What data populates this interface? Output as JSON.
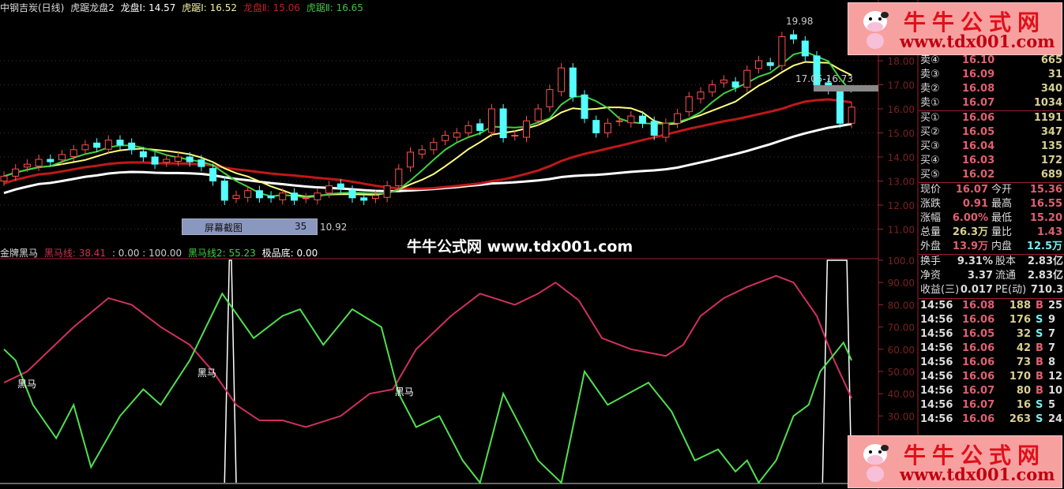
{
  "header": {
    "title": "中钢吉炭(日线)",
    "indicator": "虎踞龙盘2",
    "items": [
      {
        "label": "龙盘Ⅰ: 14.57",
        "color": "#ffffff"
      },
      {
        "label": "虎踞Ⅰ: 16.52",
        "color": "#f0f0a0"
      },
      {
        "label": "龙盘Ⅱ: 15.06",
        "color": "#c02020"
      },
      {
        "label": "虎踞Ⅱ: 16.65",
        "color": "#40c040"
      }
    ]
  },
  "price_axis": [
    "18.00",
    "17.00",
    "16.00",
    "15.00",
    "14.00",
    "13.00",
    "12.00",
    "11.00"
  ],
  "price_annotations": {
    "high": "19.98",
    "range": "17.05-16.73",
    "low": "10.92"
  },
  "candles_close": [
    13.2,
    13.5,
    13.7,
    13.9,
    13.8,
    14.1,
    14.3,
    14.5,
    14.4,
    14.7,
    14.5,
    14.3,
    14.0,
    13.7,
    13.9,
    14.0,
    13.8,
    13.6,
    13.0,
    12.2,
    12.4,
    12.6,
    12.3,
    12.3,
    12.5,
    12.2,
    12.3,
    12.5,
    12.8,
    12.7,
    12.3,
    12.2,
    12.4,
    12.8,
    13.5,
    14.2,
    14.3,
    14.6,
    14.9,
    15.0,
    15.3,
    15.1,
    16.0,
    14.8,
    14.9,
    15.5,
    16.0,
    16.8,
    17.7,
    16.5,
    15.6,
    15.0,
    15.4,
    15.5,
    15.7,
    15.4,
    14.9,
    15.4,
    15.8,
    16.5,
    16.7,
    17.0,
    17.2,
    16.9,
    17.6,
    18.0,
    17.8,
    19.0,
    18.9,
    18.2,
    17.0,
    16.8,
    15.4,
    16.07
  ],
  "colors": {
    "up": "#ff5050",
    "down": "#54ffff",
    "ma1": "#ffffff",
    "ma2": "#ffff80",
    "ma3": "#c01818",
    "ma4": "#40d040"
  },
  "screenshot_tip": {
    "label": "屏幕截图",
    "value": "35"
  },
  "watermark_center": "牛牛公式网 www.tdx001.com",
  "watermark": {
    "name": "牛牛公式网",
    "url": "www.tdx001.com"
  },
  "indicator": {
    "name": "金牌黑马",
    "items": [
      {
        "label": "黑马线: 38.41",
        "color": "#d03050"
      },
      {
        "label": ": 0.00 : 100.00",
        "color": "#cccccc"
      },
      {
        "label": "黑马线2: 55.23",
        "color": "#40d040"
      },
      {
        "label": "极品底: 0.00",
        "color": "#ffffff"
      }
    ],
    "axis": [
      "100.0",
      "90.00",
      "80.00",
      "70.00",
      "60.00",
      "50.00",
      "40.00",
      "30.00"
    ],
    "signal_label": "黑马",
    "signal_bars": [
      1.5,
      17,
      34
    ],
    "spikes": [
      [
        19,
        20
      ],
      [
        70.5,
        73
      ]
    ],
    "red": [
      [
        0,
        45
      ],
      [
        2,
        50
      ],
      [
        6,
        70
      ],
      [
        9,
        83
      ],
      [
        11,
        80
      ],
      [
        13.5,
        70
      ],
      [
        16,
        62
      ],
      [
        18,
        50
      ],
      [
        20,
        35
      ],
      [
        22,
        28
      ],
      [
        24,
        28
      ],
      [
        26,
        25
      ],
      [
        29,
        30
      ],
      [
        31.5,
        40
      ],
      [
        33.5,
        42
      ],
      [
        35.5,
        60
      ],
      [
        38.5,
        75
      ],
      [
        41,
        85
      ],
      [
        44,
        80
      ],
      [
        46,
        85
      ],
      [
        47.5,
        90
      ],
      [
        49.5,
        82
      ],
      [
        51.5,
        65
      ],
      [
        54,
        60
      ],
      [
        57,
        57
      ],
      [
        58.5,
        62
      ],
      [
        60,
        75
      ],
      [
        62,
        83
      ],
      [
        64,
        88
      ],
      [
        66.5,
        93
      ],
      [
        68,
        90
      ],
      [
        70,
        75
      ],
      [
        71.5,
        55
      ],
      [
        73,
        38
      ]
    ],
    "green": [
      [
        0,
        60
      ],
      [
        1,
        55
      ],
      [
        2.5,
        35
      ],
      [
        4.5,
        20
      ],
      [
        6,
        35
      ],
      [
        7.5,
        7
      ],
      [
        10,
        30
      ],
      [
        12,
        42
      ],
      [
        13.5,
        35
      ],
      [
        16,
        55
      ],
      [
        18.8,
        85
      ],
      [
        21.5,
        65
      ],
      [
        24,
        75
      ],
      [
        25.5,
        78
      ],
      [
        27.5,
        62
      ],
      [
        30,
        78
      ],
      [
        32.5,
        70
      ],
      [
        34,
        40
      ],
      [
        35.5,
        25
      ],
      [
        37.5,
        30
      ],
      [
        39.5,
        10
      ],
      [
        41,
        0
      ],
      [
        43,
        40
      ],
      [
        46,
        10
      ],
      [
        48,
        0
      ],
      [
        50,
        50
      ],
      [
        52,
        35
      ],
      [
        55.5,
        45
      ],
      [
        57.5,
        32
      ],
      [
        59.5,
        10
      ],
      [
        61.5,
        15
      ],
      [
        63,
        5
      ],
      [
        64,
        10
      ],
      [
        65,
        0
      ],
      [
        66.5,
        10
      ],
      [
        68,
        30
      ],
      [
        69.3,
        35
      ],
      [
        70.3,
        50
      ],
      [
        72.3,
        63
      ],
      [
        73,
        55
      ]
    ]
  },
  "quote": {
    "asks": [
      {
        "label": "卖④",
        "price": "16.10",
        "vol": "665"
      },
      {
        "label": "卖③",
        "price": "16.09",
        "vol": "31"
      },
      {
        "label": "卖②",
        "price": "16.08",
        "vol": "340"
      },
      {
        "label": "卖①",
        "price": "16.07",
        "vol": "1034"
      }
    ],
    "bids": [
      {
        "label": "买①",
        "price": "16.06",
        "vol": "1191"
      },
      {
        "label": "买②",
        "price": "16.05",
        "vol": "347"
      },
      {
        "label": "买③",
        "price": "16.04",
        "vol": "135"
      },
      {
        "label": "买④",
        "price": "16.03",
        "vol": "172"
      },
      {
        "label": "买⑤",
        "price": "16.02",
        "vol": "689"
      }
    ],
    "stats": [
      {
        "l1": "现价",
        "v1": "16.07",
        "l2": "今开",
        "v2": "15.36"
      },
      {
        "l1": "涨跌",
        "v1": "0.91",
        "l2": "最高",
        "v2": "16.55"
      },
      {
        "l1": "涨幅",
        "v1": "6.00%",
        "l2": "最低",
        "v2": "15.20"
      },
      {
        "l1": "总量",
        "v1": "26.3万",
        "l2": "量比",
        "v2": "1.43"
      },
      {
        "l1": "外盘",
        "v1": "13.9万",
        "l2": "内盘",
        "v2": "12.5万"
      }
    ],
    "fin": [
      {
        "l1": "换手",
        "v1": "9.31%",
        "l2": "股本",
        "v2": "2.83亿"
      },
      {
        "l1": "净资",
        "v1": "3.37",
        "l2": "流通",
        "v2": "2.83亿"
      },
      {
        "l1": "收益(三)",
        "v1": "0.017",
        "l2": "PE(动)",
        "v2": "710.3"
      }
    ],
    "ticks": [
      {
        "t": "14:56",
        "p": "16.08",
        "v": "188",
        "d": "B",
        "n": "25"
      },
      {
        "t": "14:56",
        "p": "16.06",
        "v": "176",
        "d": "S",
        "n": "9"
      },
      {
        "t": "14:56",
        "p": "16.05",
        "v": "32",
        "d": "S",
        "n": "7"
      },
      {
        "t": "14:56",
        "p": "16.06",
        "v": "42",
        "d": "B",
        "n": "7"
      },
      {
        "t": "14:56",
        "p": "16.06",
        "v": "73",
        "d": "B",
        "n": "8"
      },
      {
        "t": "14:56",
        "p": "16.06",
        "v": "170",
        "d": "B",
        "n": "12"
      },
      {
        "t": "14:56",
        "p": "16.07",
        "v": "80",
        "d": "B",
        "n": "10"
      },
      {
        "t": "14:56",
        "p": "16.07",
        "v": "16",
        "d": "S",
        "n": "5"
      },
      {
        "t": "14:56",
        "p": "16.06",
        "v": "263",
        "d": "S",
        "n": "24"
      }
    ]
  }
}
